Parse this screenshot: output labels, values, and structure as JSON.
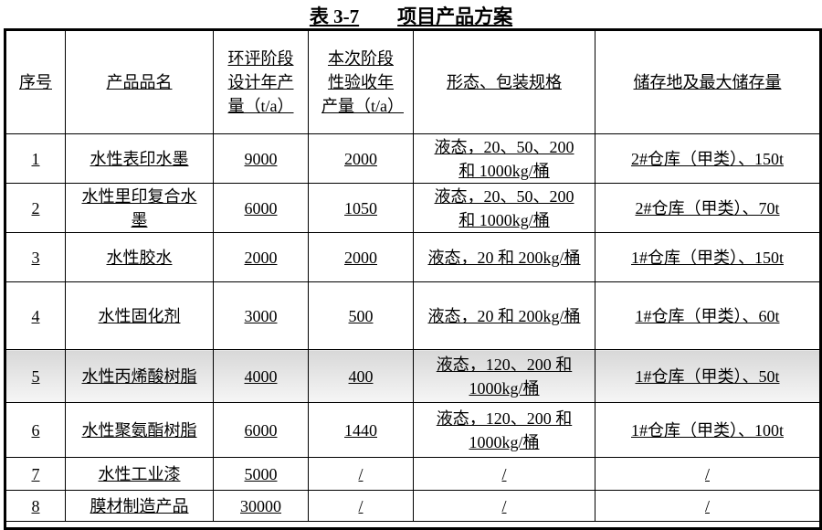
{
  "title": {
    "number": "表 3-7",
    "text": "项目产品方案"
  },
  "headers": [
    "序号",
    "产品品名",
    "环评阶段设计年产量（t/a）",
    "本次阶段性验收年产量（t/a）",
    "形态、包装规格",
    "储存地及最大储存量"
  ],
  "rows": [
    {
      "no": "1",
      "name": "水性表印水墨",
      "design": "9000",
      "actual": "2000",
      "form": "液态，20、50、200 和 1000kg/桶",
      "storage": "2#仓库（甲类）、150t"
    },
    {
      "no": "2",
      "name": "水性里印复合水墨",
      "design": "6000",
      "actual": "1050",
      "form": "液态，20、50、200 和 1000kg/桶",
      "storage": "2#仓库（甲类）、70t"
    },
    {
      "no": "3",
      "name": "水性胶水",
      "design": "2000",
      "actual": "2000",
      "form": "液态，20 和 200kg/桶",
      "storage": "1#仓库（甲类）、150t"
    },
    {
      "no": "4",
      "name": "水性固化剂",
      "design": "3000",
      "actual": "500",
      "form": "液态，20 和 200kg/桶",
      "storage": "1#仓库（甲类）、60t"
    },
    {
      "no": "5",
      "name": "水性丙烯酸树脂",
      "design": "4000",
      "actual": "400",
      "form": "液态，120、200 和 1000kg/桶",
      "storage": "1#仓库（甲类）、50t"
    },
    {
      "no": "6",
      "name": "水性聚氨酯树脂",
      "design": "6000",
      "actual": "1440",
      "form": "液态，120、200 和 1000kg/桶",
      "storage": "1#仓库（甲类）、100t"
    },
    {
      "no": "7",
      "name": "水性工业漆",
      "design": "5000",
      "actual": "/",
      "form": "/",
      "storage": "/"
    },
    {
      "no": "8",
      "name": "膜材制造产品",
      "design": "30000",
      "actual": "/",
      "form": "/",
      "storage": "/"
    }
  ]
}
